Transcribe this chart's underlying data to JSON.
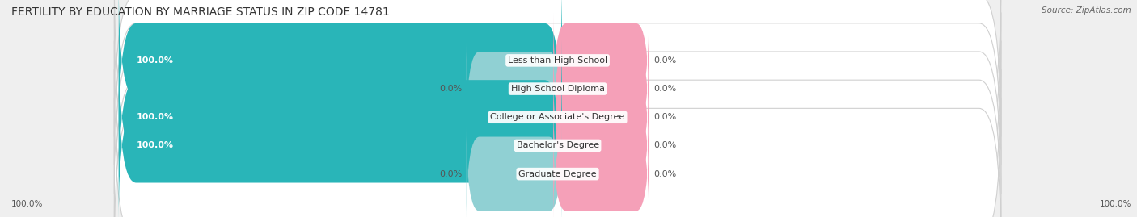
{
  "title": "FERTILITY BY EDUCATION BY MARRIAGE STATUS IN ZIP CODE 14781",
  "source": "Source: ZipAtlas.com",
  "categories": [
    "Less than High School",
    "High School Diploma",
    "College or Associate's Degree",
    "Bachelor's Degree",
    "Graduate Degree"
  ],
  "married_values": [
    100.0,
    0.0,
    100.0,
    100.0,
    0.0
  ],
  "unmarried_values": [
    0.0,
    0.0,
    0.0,
    0.0,
    0.0
  ],
  "married_color": "#29b5b8",
  "married_color_light": "#90d0d3",
  "unmarried_color": "#f5a0b8",
  "background_color": "#efefef",
  "bar_bg_color": "#ffffff",
  "title_fontsize": 10,
  "label_fontsize": 8,
  "bar_height": 0.62
}
